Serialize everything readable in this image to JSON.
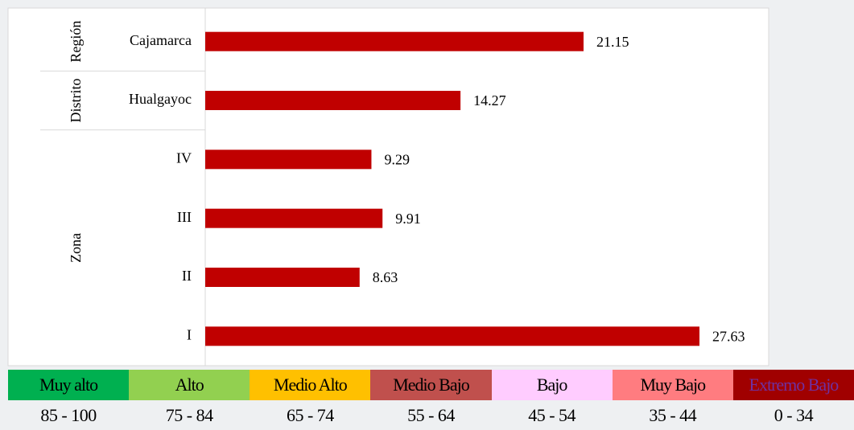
{
  "chart_data": {
    "type": "bar",
    "orientation": "horizontal",
    "color": "#c00000",
    "xlim": [
      0,
      31.5
    ],
    "groups": [
      {
        "name": "Región",
        "categories": [
          "Cajamarca"
        ],
        "values": [
          21.15
        ]
      },
      {
        "name": "Distrito",
        "categories": [
          "Hualgayoc"
        ],
        "values": [
          14.27
        ]
      },
      {
        "name": "Zona",
        "categories": [
          "IV",
          "III",
          "II",
          "I"
        ],
        "values": [
          9.29,
          9.91,
          8.63,
          27.63
        ]
      }
    ]
  },
  "legend": [
    {
      "label": "Muy alto",
      "range": "85 - 100",
      "color": "#00b050"
    },
    {
      "label": "Alto",
      "range": "75 - 84",
      "color": "#92d050"
    },
    {
      "label": "Medio Alto",
      "range": "65 - 74",
      "color": "#ffc000"
    },
    {
      "label": "Medio Bajo",
      "range": "55 - 64",
      "color": "#c0504d"
    },
    {
      "label": "Bajo",
      "range": "45 - 54",
      "color": "#ffccff"
    },
    {
      "label": "Muy Bajo",
      "range": "35 - 44",
      "color": "#ff7c80"
    },
    {
      "label": "Extremo Bajo",
      "range": "0 - 34",
      "color": "#a00000"
    }
  ]
}
